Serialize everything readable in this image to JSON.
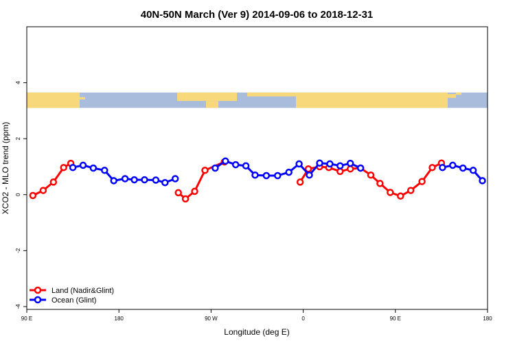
{
  "chart_data": {
    "type": "line",
    "title": "40N-50N March (Ver 9)   2014-09-06 to 2018-12-31",
    "xlabel": "Longitude (deg E)",
    "ylabel": "XCO2 - MLO trend (ppm)",
    "xlim": [
      90,
      540
    ],
    "ylim": [
      -4.1,
      6.0
    ],
    "x_ticks": [
      {
        "value": 90,
        "label": "90 E"
      },
      {
        "value": 180,
        "label": "180"
      },
      {
        "value": 270,
        "label": "90 W"
      },
      {
        "value": 360,
        "label": "0"
      },
      {
        "value": 450,
        "label": "90 E"
      },
      {
        "value": 540,
        "label": "180"
      }
    ],
    "y_ticks": [
      {
        "value": -4,
        "label": "-4"
      },
      {
        "value": -2,
        "label": "-2"
      },
      {
        "value": 0,
        "label": "0"
      },
      {
        "value": 2,
        "label": "2"
      },
      {
        "value": 4,
        "label": "4"
      }
    ],
    "map_band": {
      "ymin": 3.1,
      "ymax": 3.65,
      "land_color": "#f7d87a",
      "ocean_color": "#a9bcdc"
    },
    "legend_position": "bottom-left",
    "series": [
      {
        "name": "Land (Nadir&Glint)",
        "color": "#ff0000",
        "segments": [
          [
            [
              96,
              -0.03
            ],
            [
              106,
              0.15
            ],
            [
              116,
              0.45
            ],
            [
              126,
              0.97
            ],
            [
              133,
              1.12
            ]
          ],
          [
            [
              238,
              0.07
            ],
            [
              245,
              -0.15
            ],
            [
              254,
              0.12
            ],
            [
              264,
              0.87
            ],
            [
              283,
              1.17
            ]
          ],
          [
            [
              357,
              0.45
            ],
            [
              365,
              0.92
            ],
            [
              376,
              1.0
            ],
            [
              385,
              0.97
            ],
            [
              396,
              0.83
            ],
            [
              406,
              0.92
            ],
            [
              416,
              0.95
            ],
            [
              426,
              0.7
            ],
            [
              435,
              0.4
            ],
            [
              445,
              0.08
            ],
            [
              455,
              -0.05
            ],
            [
              465,
              0.15
            ],
            [
              476,
              0.47
            ],
            [
              486,
              0.97
            ],
            [
              495,
              1.13
            ]
          ]
        ]
      },
      {
        "name": "Ocean (Glint)",
        "color": "#0000ff",
        "segments": [
          [
            [
              135,
              0.97
            ],
            [
              145,
              1.05
            ],
            [
              155,
              0.95
            ],
            [
              166,
              0.87
            ],
            [
              175,
              0.5
            ],
            [
              186,
              0.57
            ],
            [
              195,
              0.53
            ],
            [
              205,
              0.53
            ],
            [
              216,
              0.52
            ],
            [
              225,
              0.43
            ],
            [
              235,
              0.57
            ]
          ],
          [
            [
              274,
              0.95
            ],
            [
              284,
              1.2
            ],
            [
              294,
              1.07
            ],
            [
              304,
              1.03
            ],
            [
              313,
              0.7
            ],
            [
              324,
              0.68
            ],
            [
              335,
              0.68
            ],
            [
              346,
              0.8
            ],
            [
              356,
              1.1
            ],
            [
              366,
              0.7
            ],
            [
              376,
              1.13
            ],
            [
              386,
              1.1
            ],
            [
              396,
              1.03
            ],
            [
              406,
              1.12
            ],
            [
              416,
              0.95
            ]
          ],
          [
            [
              496,
              0.97
            ],
            [
              506,
              1.05
            ],
            [
              516,
              0.95
            ],
            [
              526,
              0.87
            ],
            [
              535,
              0.5
            ]
          ]
        ]
      }
    ]
  }
}
